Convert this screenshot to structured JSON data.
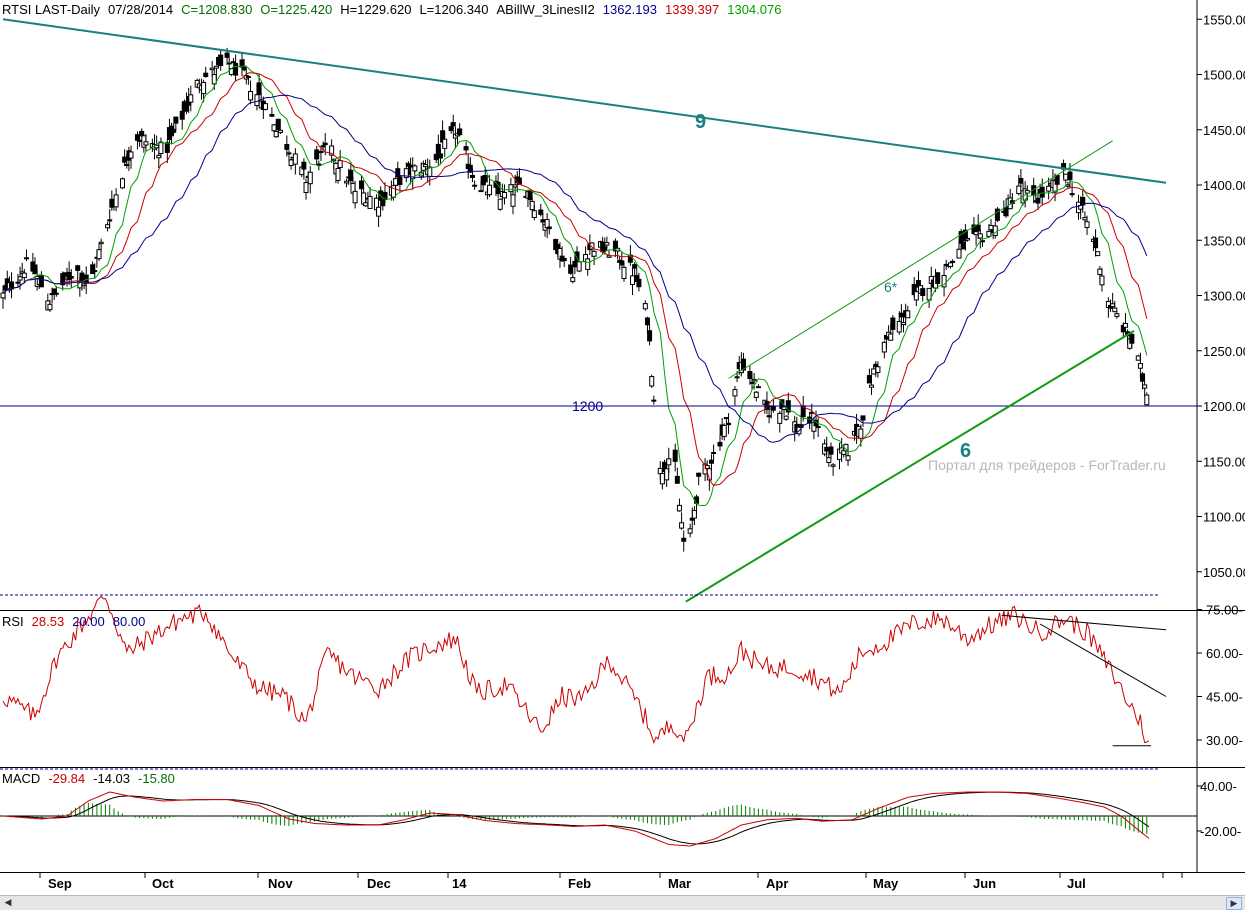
{
  "header": {
    "symbol": "RTSI LAST-Daily",
    "date": "07/28/2014",
    "close": "C=1208.830",
    "open": "O=1225.420",
    "high": "H=1229.620",
    "low": "L=1206.340",
    "indicator": "ABillW_3LinesII2",
    "ind_v1": "1362.193",
    "ind_v2": "1339.397",
    "ind_v3": "1304.076",
    "ind_colors": [
      "#00008c",
      "#cc0000",
      "#00a000"
    ]
  },
  "rsi_header": {
    "label": "RSI",
    "value": "28.53",
    "low": "20.00",
    "high": "80.00"
  },
  "macd_header": {
    "label": "MACD",
    "macd": "-29.84",
    "signal": "-14.03",
    "hist": "-15.80"
  },
  "annotations": {
    "level_label": "1200",
    "label_9": "9",
    "label_6": "6",
    "label_6_star": "6*",
    "watermark": "Портал для трейдеров - ForTrader.ru"
  },
  "scrollbar": {
    "left_arrow": "◀",
    "right_arrow": "▶"
  },
  "chart_data": [
    {
      "type": "candlestick",
      "title": "RTSI LAST-Daily",
      "y_ticks": [
        1050,
        1100,
        1150,
        1200,
        1250,
        1300,
        1350,
        1400,
        1450,
        1500,
        1550
      ],
      "y_tick_labels": [
        "1050.00-",
        "1100.00-",
        "1150.00-",
        "1200.00-",
        "1250.00-",
        "1300.00-",
        "1350.00-",
        "1400.00-",
        "1450.00-",
        "1500.00-",
        "1550.00-"
      ],
      "ylim": [
        1010,
        1560
      ],
      "x_labels": [
        "Sep",
        "Oct",
        "Nov",
        "Dec",
        "14",
        "Feb",
        "Mar",
        "Apr",
        "May",
        "Jun",
        "Jul"
      ],
      "anchors": [
        [
          0,
          1300
        ],
        [
          12,
          1330
        ],
        [
          22,
          1295
        ],
        [
          34,
          1325
        ],
        [
          40,
          1305
        ],
        [
          54,
          1400
        ],
        [
          62,
          1445
        ],
        [
          76,
          1430
        ],
        [
          92,
          1495
        ],
        [
          106,
          1510
        ],
        [
          112,
          1500
        ],
        [
          122,
          1475
        ],
        [
          132,
          1440
        ],
        [
          142,
          1405
        ],
        [
          152,
          1435
        ],
        [
          165,
          1395
        ],
        [
          177,
          1385
        ],
        [
          188,
          1410
        ],
        [
          202,
          1420
        ],
        [
          212,
          1450
        ],
        [
          222,
          1400
        ],
        [
          234,
          1390
        ],
        [
          244,
          1400
        ],
        [
          256,
          1360
        ],
        [
          266,
          1320
        ],
        [
          276,
          1345
        ],
        [
          286,
          1340
        ],
        [
          296,
          1320
        ],
        [
          302,
          1280
        ],
        [
          308,
          1140
        ],
        [
          314,
          1160
        ],
        [
          320,
          1060
        ],
        [
          326,
          1130
        ],
        [
          334,
          1160
        ],
        [
          340,
          1190
        ],
        [
          346,
          1240
        ],
        [
          352,
          1220
        ],
        [
          358,
          1195
        ],
        [
          366,
          1200
        ],
        [
          372,
          1180
        ],
        [
          380,
          1190
        ],
        [
          388,
          1150
        ],
        [
          396,
          1160
        ],
        [
          402,
          1185
        ],
        [
          408,
          1230
        ],
        [
          414,
          1260
        ],
        [
          422,
          1280
        ],
        [
          430,
          1305
        ],
        [
          440,
          1320
        ],
        [
          450,
          1345
        ],
        [
          460,
          1355
        ],
        [
          468,
          1370
        ],
        [
          476,
          1400
        ],
        [
          482,
          1385
        ],
        [
          490,
          1395
        ],
        [
          498,
          1410
        ],
        [
          504,
          1385
        ],
        [
          512,
          1345
        ],
        [
          518,
          1295
        ],
        [
          524,
          1275
        ],
        [
          530,
          1255
        ],
        [
          534,
          1225
        ],
        [
          537,
          1210
        ]
      ],
      "moving_averages": [
        {
          "period": 5,
          "color": "#00a000"
        },
        {
          "period": 10,
          "color": "#cc0000"
        },
        {
          "period": 20,
          "color": "#00008c"
        }
      ],
      "trendlines": [
        {
          "label": "9",
          "from": [
            0,
            1550
          ],
          "to": [
            545,
            1402
          ],
          "color": "#1a8080"
        },
        {
          "label": "6",
          "from": [
            320,
            1023
          ],
          "to": [
            530,
            1268
          ],
          "color": "#119911"
        },
        {
          "label": "6*",
          "from": [
            340,
            1225
          ],
          "to": [
            520,
            1440
          ],
          "color": "#119911"
        }
      ],
      "horizontal_levels": [
        {
          "value": 1200,
          "label": "1200",
          "color": "#00008c"
        }
      ]
    },
    {
      "type": "line",
      "title": "RSI",
      "y_ticks": [
        30,
        45,
        60,
        75
      ],
      "y_tick_labels": [
        "30.00-",
        "45.00-",
        "60.00-",
        "75.00-"
      ],
      "ylim": [
        20,
        80
      ],
      "bands": [
        20,
        80
      ],
      "anchors": [
        [
          0,
          45
        ],
        [
          15,
          38
        ],
        [
          25,
          58
        ],
        [
          35,
          68
        ],
        [
          48,
          80
        ],
        [
          58,
          60
        ],
        [
          70,
          66
        ],
        [
          84,
          72
        ],
        [
          95,
          74
        ],
        [
          108,
          58
        ],
        [
          120,
          48
        ],
        [
          132,
          45
        ],
        [
          142,
          36
        ],
        [
          152,
          60
        ],
        [
          164,
          52
        ],
        [
          176,
          48
        ],
        [
          190,
          58
        ],
        [
          200,
          62
        ],
        [
          212,
          65
        ],
        [
          222,
          46
        ],
        [
          236,
          49
        ],
        [
          252,
          33
        ],
        [
          262,
          45
        ],
        [
          272,
          44
        ],
        [
          284,
          58
        ],
        [
          298,
          42
        ],
        [
          306,
          30
        ],
        [
          314,
          36
        ],
        [
          320,
          30
        ],
        [
          330,
          52
        ],
        [
          340,
          53
        ],
        [
          346,
          61
        ],
        [
          356,
          55
        ],
        [
          370,
          55
        ],
        [
          380,
          52
        ],
        [
          392,
          46
        ],
        [
          402,
          60
        ],
        [
          414,
          64
        ],
        [
          426,
          70
        ],
        [
          440,
          72
        ],
        [
          452,
          65
        ],
        [
          464,
          70
        ],
        [
          474,
          73
        ],
        [
          486,
          67
        ],
        [
          498,
          72
        ],
        [
          508,
          67
        ],
        [
          520,
          53
        ],
        [
          528,
          42
        ],
        [
          532,
          38
        ],
        [
          537,
          28
        ]
      ],
      "trendlines": [
        {
          "from": [
            468,
            73
          ],
          "to": [
            545,
            68
          ],
          "color": "#000000"
        },
        {
          "from": [
            486,
            70
          ],
          "to": [
            545,
            45
          ],
          "color": "#000000"
        },
        {
          "from": [
            520,
            28
          ],
          "to": [
            538,
            28
          ],
          "color": "#000000"
        }
      ]
    },
    {
      "type": "line",
      "title": "MACD",
      "y_ticks": [
        40,
        -20
      ],
      "y_tick_labels": [
        "40.00-",
        "-20.00-"
      ],
      "ylim": [
        -50,
        55
      ],
      "anchors_macd": [
        [
          0,
          0
        ],
        [
          18,
          -4
        ],
        [
          30,
          0
        ],
        [
          40,
          20
        ],
        [
          50,
          32
        ],
        [
          62,
          25
        ],
        [
          75,
          20
        ],
        [
          90,
          22
        ],
        [
          105,
          22
        ],
        [
          120,
          14
        ],
        [
          134,
          -4
        ],
        [
          146,
          -10
        ],
        [
          160,
          -12
        ],
        [
          176,
          -12
        ],
        [
          188,
          -5
        ],
        [
          200,
          4
        ],
        [
          212,
          2
        ],
        [
          226,
          -6
        ],
        [
          240,
          -10
        ],
        [
          256,
          -12
        ],
        [
          268,
          -14
        ],
        [
          282,
          -12
        ],
        [
          296,
          -20
        ],
        [
          312,
          -38
        ],
        [
          322,
          -40
        ],
        [
          334,
          -30
        ],
        [
          346,
          -12
        ],
        [
          358,
          -5
        ],
        [
          372,
          -3
        ],
        [
          384,
          -7
        ],
        [
          398,
          -5
        ],
        [
          410,
          10
        ],
        [
          424,
          25
        ],
        [
          436,
          30
        ],
        [
          452,
          32
        ],
        [
          466,
          32
        ],
        [
          480,
          30
        ],
        [
          494,
          24
        ],
        [
          506,
          18
        ],
        [
          516,
          12
        ],
        [
          524,
          0
        ],
        [
          537,
          -30
        ]
      ]
    }
  ]
}
